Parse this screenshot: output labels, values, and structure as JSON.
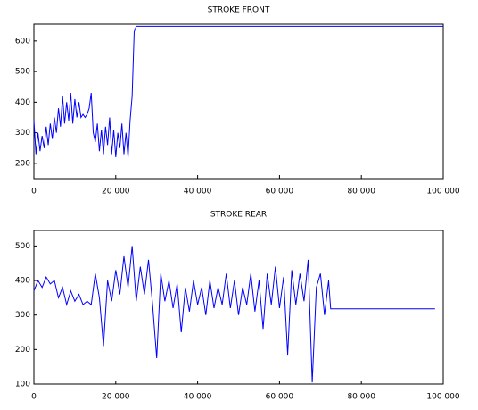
{
  "chart_data": [
    {
      "type": "line",
      "title": "STROKE FRONT",
      "x": [
        0,
        500,
        1000,
        1500,
        2000,
        2500,
        3000,
        3500,
        4000,
        4500,
        5000,
        5500,
        6000,
        6500,
        7000,
        7500,
        8000,
        8500,
        9000,
        9500,
        10000,
        10500,
        11000,
        11500,
        12000,
        12500,
        13000,
        13500,
        14000,
        14500,
        15000,
        15500,
        16000,
        16500,
        17000,
        17500,
        18000,
        18500,
        19000,
        19500,
        20000,
        20500,
        21000,
        21500,
        22000,
        22500,
        23000,
        23500,
        24000,
        24500,
        25000,
        100000
      ],
      "series": [
        {
          "color": "#0000ff",
          "values": [
            340,
            230,
            300,
            240,
            290,
            250,
            320,
            260,
            330,
            280,
            350,
            300,
            380,
            320,
            420,
            330,
            400,
            340,
            430,
            330,
            410,
            350,
            400,
            350,
            360,
            350,
            360,
            380,
            430,
            300,
            270,
            330,
            240,
            310,
            230,
            320,
            260,
            350,
            230,
            310,
            220,
            300,
            250,
            330,
            230,
            300,
            220,
            340,
            420,
            630,
            648,
            648
          ]
        }
      ],
      "xlim": [
        0,
        100000
      ],
      "xticks": [
        0,
        {
          "value": 20000,
          "label": "20 000"
        },
        {
          "value": 40000,
          "label": "40 000"
        },
        {
          "value": 60000,
          "label": "60 000"
        },
        {
          "value": 80000,
          "label": "80 000"
        },
        {
          "value": 100000,
          "label": "100 000"
        }
      ],
      "ylim": [
        150,
        655
      ],
      "yticks": [
        200,
        300,
        400,
        500,
        600
      ]
    },
    {
      "type": "line",
      "title": "STROKE REAR",
      "x": [
        0,
        1000,
        2000,
        3000,
        4000,
        5000,
        6000,
        7000,
        8000,
        9000,
        10000,
        11000,
        12000,
        13000,
        14000,
        15000,
        16000,
        17000,
        18000,
        19000,
        20000,
        21000,
        22000,
        23000,
        24000,
        25000,
        26000,
        27000,
        28000,
        29000,
        30000,
        31000,
        32000,
        33000,
        34000,
        35000,
        36000,
        37000,
        38000,
        39000,
        40000,
        41000,
        42000,
        43000,
        44000,
        45000,
        46000,
        47000,
        48000,
        49000,
        50000,
        51000,
        52000,
        53000,
        54000,
        55000,
        56000,
        57000,
        58000,
        59000,
        60000,
        61000,
        62000,
        63000,
        64000,
        65000,
        66000,
        67000,
        68000,
        69000,
        70000,
        71000,
        72000,
        72500,
        98000
      ],
      "series": [
        {
          "color": "#0000ff",
          "values": [
            370,
            400,
            380,
            410,
            390,
            400,
            350,
            380,
            330,
            370,
            340,
            360,
            330,
            340,
            330,
            420,
            350,
            210,
            400,
            340,
            430,
            360,
            470,
            380,
            500,
            340,
            440,
            360,
            460,
            330,
            175,
            420,
            340,
            400,
            320,
            390,
            250,
            380,
            310,
            400,
            330,
            380,
            300,
            400,
            320,
            380,
            330,
            420,
            320,
            400,
            300,
            380,
            330,
            420,
            310,
            400,
            260,
            420,
            330,
            440,
            320,
            410,
            185,
            430,
            330,
            420,
            340,
            460,
            105,
            380,
            420,
            300,
            400,
            318,
            318
          ]
        }
      ],
      "xlim": [
        0,
        100000
      ],
      "xticks": [
        0,
        {
          "value": 20000,
          "label": "20 000"
        },
        {
          "value": 40000,
          "label": "40 000"
        },
        {
          "value": 60000,
          "label": "60 000"
        },
        {
          "value": 80000,
          "label": "80 000"
        },
        {
          "value": 100000,
          "label": "100 000"
        }
      ],
      "ylim": [
        100,
        545
      ],
      "yticks": [
        100,
        200,
        300,
        400,
        500
      ]
    }
  ]
}
